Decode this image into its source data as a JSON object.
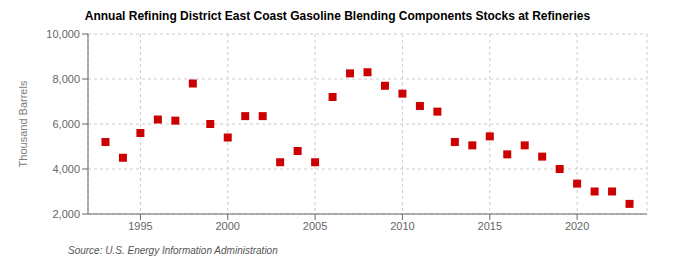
{
  "chart_data": {
    "type": "scatter",
    "title": "Annual Refining District East Coast Gasoline Blending Components Stocks at Refineries",
    "y_label": "Thousand Barrels",
    "annotations": [
      "Source: U.S. Energy Information Administration"
    ],
    "x": [
      1993,
      1994,
      1995,
      1996,
      1997,
      1998,
      1999,
      2000,
      2001,
      2002,
      2003,
      2004,
      2005,
      2006,
      2007,
      2008,
      2009,
      2010,
      2011,
      2012,
      2013,
      2014,
      2015,
      2016,
      2017,
      2018,
      2019,
      2020,
      2021,
      2022,
      2023
    ],
    "values": [
      5200,
      4500,
      5600,
      6200,
      6150,
      7800,
      6000,
      5400,
      6350,
      6350,
      4300,
      4800,
      4300,
      7200,
      8250,
      8300,
      7700,
      7350,
      6800,
      6550,
      5200,
      5050,
      5450,
      4650,
      5050,
      4550,
      4000,
      3350,
      3000,
      3000,
      2450
    ],
    "color": "#cc0000",
    "marker": "square",
    "xlim": [
      1992,
      2024
    ],
    "xticks": [
      1995,
      2000,
      2005,
      2010,
      2015,
      2020
    ],
    "ylim": [
      2000,
      10000
    ],
    "yticks": [
      {
        "value": 2000,
        "label": "2,000"
      },
      {
        "value": 4000,
        "label": "4,000"
      },
      {
        "value": 6000,
        "label": "6,000"
      },
      {
        "value": 8000,
        "label": "8,000"
      },
      {
        "value": 10000,
        "label": "10,000"
      }
    ],
    "grid": true
  }
}
